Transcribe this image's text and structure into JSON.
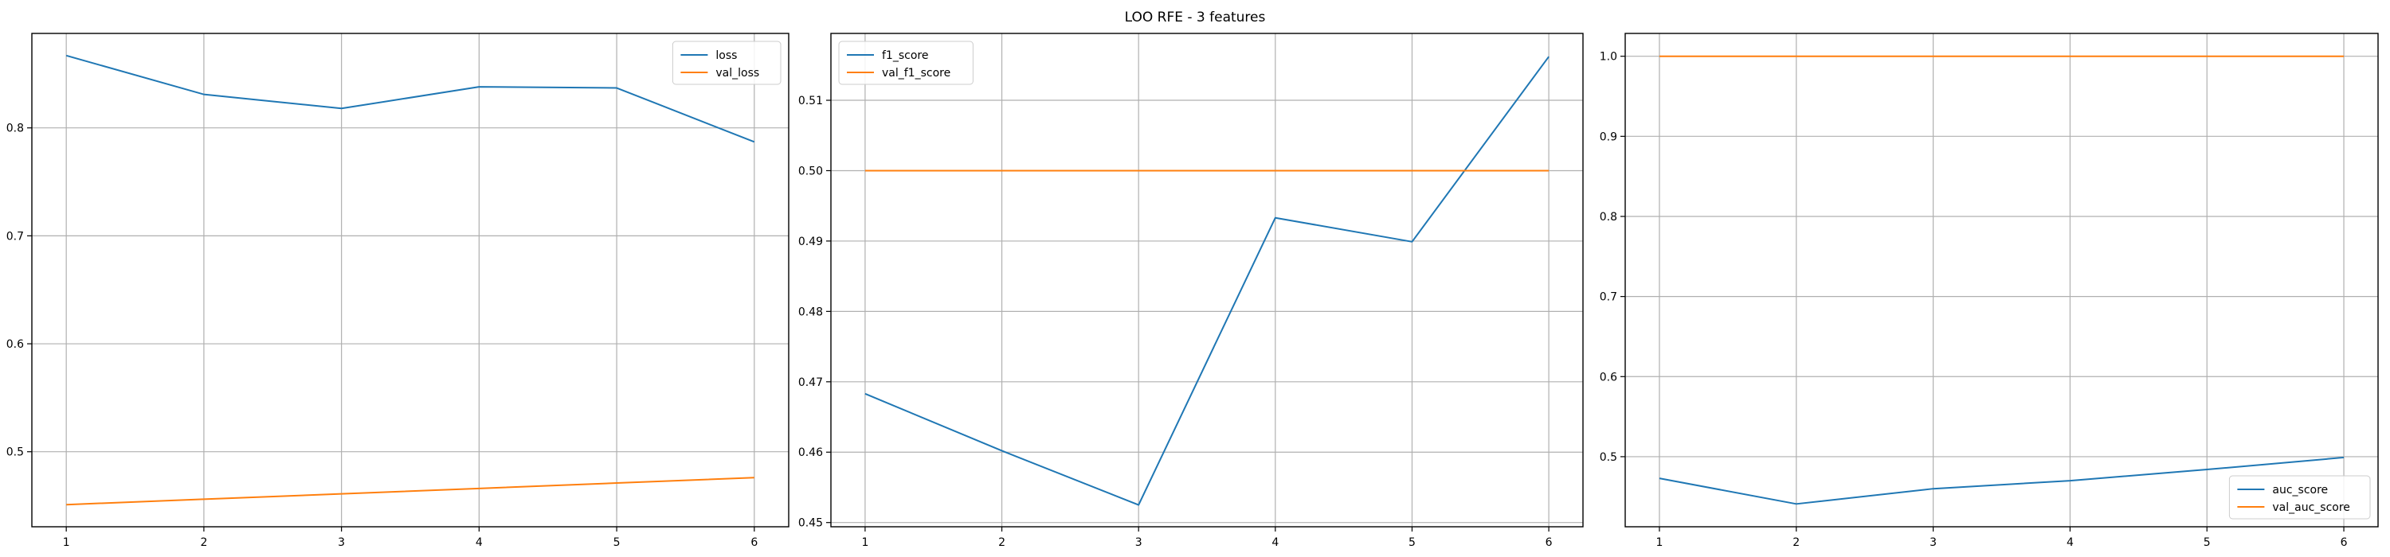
{
  "figure": {
    "title": "LOO RFE - 3 features"
  },
  "colors": {
    "series_1": "#1f77b4",
    "series_2": "#ff7f0e",
    "grid": "#b0b0b0"
  },
  "chart_data": [
    {
      "type": "line",
      "title": "",
      "xlabel": "",
      "ylabel": "",
      "grid": true,
      "legend_position": "upper right",
      "x": [
        1,
        2,
        3,
        4,
        5,
        6
      ],
      "xlim": [
        0.75,
        6.25
      ],
      "ylim": [
        0.4305,
        0.8875
      ],
      "xticks": [
        1,
        2,
        3,
        4,
        5,
        6
      ],
      "yticks": [
        0.5,
        0.6,
        0.7,
        0.8
      ],
      "ytick_labels": [
        "0.5",
        "0.6",
        "0.7",
        "0.8"
      ],
      "series": [
        {
          "name": "loss",
          "values": [
            0.867,
            0.831,
            0.818,
            0.838,
            0.837,
            0.787
          ]
        },
        {
          "name": "val_loss",
          "values": [
            0.451,
            0.456,
            0.461,
            0.466,
            0.471,
            0.476
          ]
        }
      ]
    },
    {
      "type": "line",
      "title": "",
      "xlabel": "",
      "ylabel": "",
      "grid": true,
      "legend_position": "upper left",
      "x": [
        1,
        2,
        3,
        4,
        5,
        6
      ],
      "xlim": [
        0.75,
        6.25
      ],
      "ylim": [
        0.4494,
        0.5195
      ],
      "xticks": [
        1,
        2,
        3,
        4,
        5,
        6
      ],
      "yticks": [
        0.45,
        0.46,
        0.47,
        0.48,
        0.49,
        0.5,
        0.51
      ],
      "ytick_labels": [
        "0.45",
        "0.46",
        "0.47",
        "0.48",
        "0.49",
        "0.50",
        "0.51"
      ],
      "series": [
        {
          "name": "f1_score",
          "values": [
            0.4683,
            0.4602,
            0.4525,
            0.4933,
            0.4899,
            0.5162
          ]
        },
        {
          "name": "val_f1_score",
          "values": [
            0.5,
            0.5,
            0.5,
            0.5,
            0.5,
            0.5
          ]
        }
      ]
    },
    {
      "type": "line",
      "title": "",
      "xlabel": "",
      "ylabel": "",
      "grid": true,
      "legend_position": "lower right",
      "x": [
        1,
        2,
        3,
        4,
        5,
        6
      ],
      "xlim": [
        0.75,
        6.25
      ],
      "ylim": [
        0.4125,
        1.0285
      ],
      "xticks": [
        1,
        2,
        3,
        4,
        5,
        6
      ],
      "yticks": [
        0.5,
        0.6,
        0.7,
        0.8,
        0.9,
        1.0
      ],
      "ytick_labels": [
        "0.5",
        "0.6",
        "0.7",
        "0.8",
        "0.9",
        "1.0"
      ],
      "series": [
        {
          "name": "auc_score",
          "values": [
            0.473,
            0.441,
            0.46,
            0.47,
            0.484,
            0.499
          ]
        },
        {
          "name": "val_auc_score",
          "values": [
            1.0,
            1.0,
            1.0,
            1.0,
            1.0,
            1.0
          ]
        }
      ]
    }
  ]
}
